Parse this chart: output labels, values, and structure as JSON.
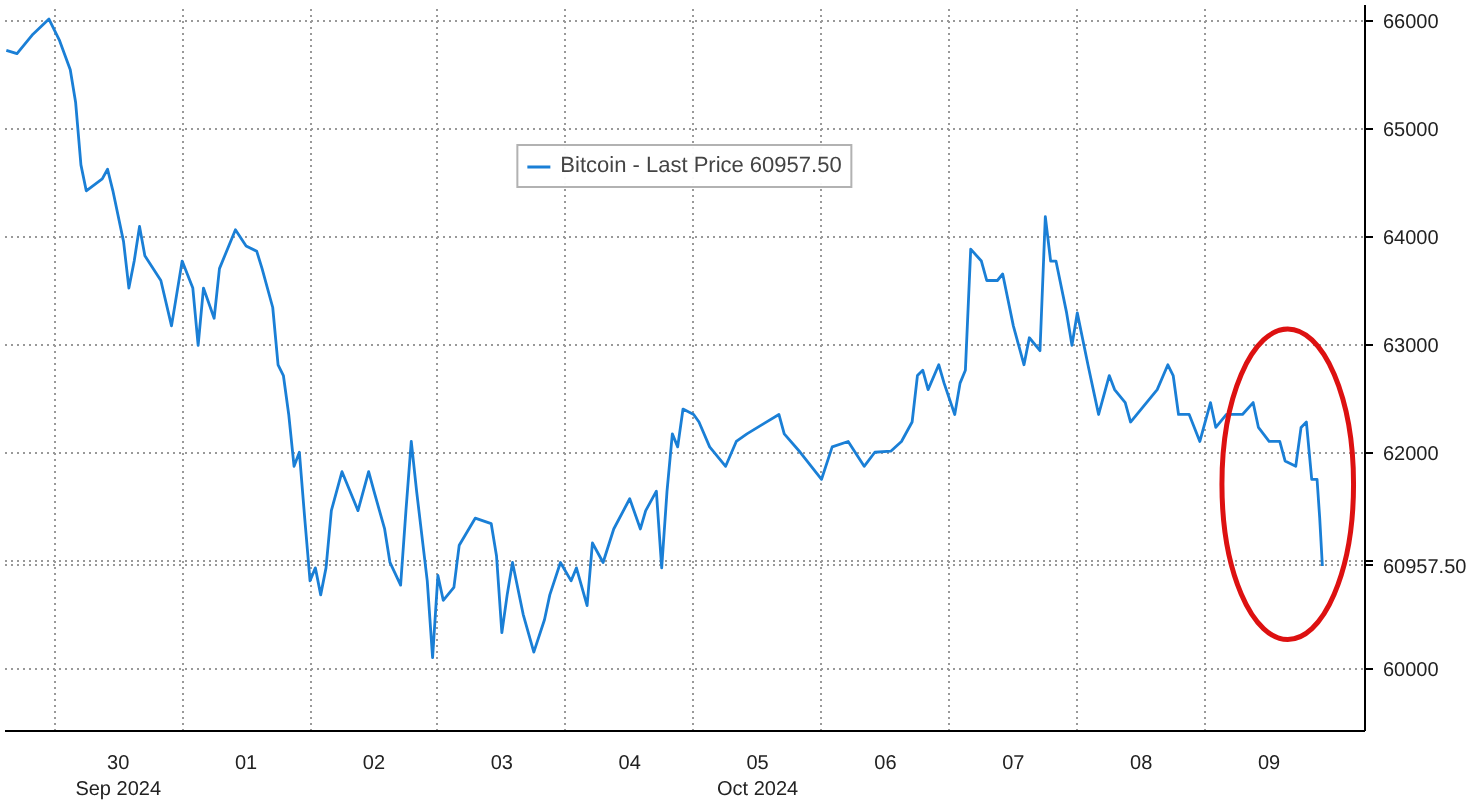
{
  "chart_data": {
    "type": "line",
    "legend": "top",
    "grid": true,
    "marker": "none",
    "line_style": "solid",
    "xlim": [
      "2024-09-29T14:45",
      "2024-10-10T06:00"
    ],
    "ylim": [
      59430,
      66150
    ],
    "yticks": [
      60000,
      {
        "value": 60957.5,
        "label": "60957.50"
      },
      {
        "value": 61000,
        "label": null
      },
      62000,
      63000,
      64000,
      65000,
      66000
    ],
    "xticks": [
      {
        "value": "2024-09-30T00:00",
        "label": null
      },
      {
        "value": "2024-09-30T12:00",
        "label": "30\nSep 2024"
      },
      {
        "value": "2024-10-01T00:00",
        "label": null
      },
      {
        "value": "2024-10-01T12:00",
        "label": "01"
      },
      {
        "value": "2024-10-02T00:00",
        "label": null
      },
      {
        "value": "2024-10-02T12:00",
        "label": "02"
      },
      {
        "value": "2024-10-03T00:00",
        "label": null
      },
      {
        "value": "2024-10-03T12:00",
        "label": "03"
      },
      {
        "value": "2024-10-04T00:00",
        "label": null
      },
      {
        "value": "2024-10-04T12:00",
        "label": "04"
      },
      {
        "value": "2024-10-05T00:00",
        "label": null
      },
      {
        "value": "2024-10-05T12:00",
        "label": "05\nOct 2024"
      },
      {
        "value": "2024-10-06T00:00",
        "label": null
      },
      {
        "value": "2024-10-06T12:00",
        "label": "06"
      },
      {
        "value": "2024-10-07T00:00",
        "label": null
      },
      {
        "value": "2024-10-07T12:00",
        "label": "07"
      },
      {
        "value": "2024-10-08T00:00",
        "label": null
      },
      {
        "value": "2024-10-08T12:00",
        "label": "08"
      },
      {
        "value": "2024-10-09T00:00",
        "label": null
      },
      {
        "value": "2024-10-09T12:00",
        "label": "09"
      }
    ],
    "series": [
      {
        "name": "Bitcoin - Last Price 60957.50",
        "color": "#1a7fd6",
        "x": [
          "2024-09-29T15:00",
          "2024-09-29T17:00",
          "2024-09-29T20:00",
          "2024-09-29T23:00",
          "2024-09-30T01:00",
          "2024-09-30T03:00",
          "2024-09-30T04:00",
          "2024-09-30T05:00",
          "2024-09-30T06:00",
          "2024-09-30T09:00",
          "2024-09-30T10:00",
          "2024-09-30T11:00",
          "2024-09-30T13:00",
          "2024-09-30T14:00",
          "2024-09-30T15:00",
          "2024-09-30T16:00",
          "2024-09-30T17:00",
          "2024-09-30T20:00",
          "2024-09-30T22:00",
          "2024-10-01T00:00",
          "2024-10-01T02:00",
          "2024-10-01T03:00",
          "2024-10-01T04:00",
          "2024-10-01T06:00",
          "2024-10-01T07:00",
          "2024-10-01T10:00",
          "2024-10-01T12:00",
          "2024-10-01T14:00",
          "2024-10-01T15:00",
          "2024-10-01T17:00",
          "2024-10-01T18:00",
          "2024-10-01T19:00",
          "2024-10-01T20:00",
          "2024-10-01T21:00",
          "2024-10-01T22:00",
          "2024-10-01T23:00",
          "2024-10-02T00:00",
          "2024-10-02T01:00",
          "2024-10-02T02:00",
          "2024-10-02T03:00",
          "2024-10-02T04:00",
          "2024-10-02T06:00",
          "2024-10-02T09:00",
          "2024-10-02T11:00",
          "2024-10-02T12:00",
          "2024-10-02T14:00",
          "2024-10-02T15:00",
          "2024-10-02T17:00",
          "2024-10-02T18:00",
          "2024-10-02T19:00",
          "2024-10-02T20:00",
          "2024-10-02T22:00",
          "2024-10-02T23:00",
          "2024-10-03T00:00",
          "2024-10-03T01:00",
          "2024-10-03T03:00",
          "2024-10-03T04:00",
          "2024-10-03T07:00",
          "2024-10-03T10:00",
          "2024-10-03T11:00",
          "2024-10-03T12:00",
          "2024-10-03T13:00",
          "2024-10-03T14:00",
          "2024-10-03T16:00",
          "2024-10-03T18:00",
          "2024-10-03T20:00",
          "2024-10-03T21:00",
          "2024-10-03T23:00",
          "2024-10-04T01:00",
          "2024-10-04T02:00",
          "2024-10-04T04:00",
          "2024-10-04T05:00",
          "2024-10-04T07:00",
          "2024-10-04T09:00",
          "2024-10-04T12:00",
          "2024-10-04T14:00",
          "2024-10-04T15:00",
          "2024-10-04T17:00",
          "2024-10-04T18:00",
          "2024-10-04T19:00",
          "2024-10-04T20:00",
          "2024-10-04T21:00",
          "2024-10-04T22:00",
          "2024-10-05T00:00",
          "2024-10-05T01:00",
          "2024-10-05T03:00",
          "2024-10-05T06:00",
          "2024-10-05T08:00",
          "2024-10-05T10:00",
          "2024-10-05T13:00",
          "2024-10-05T16:00",
          "2024-10-05T17:00",
          "2024-10-05T20:00",
          "2024-10-06T00:00",
          "2024-10-06T02:00",
          "2024-10-06T05:00",
          "2024-10-06T08:00",
          "2024-10-06T10:00",
          "2024-10-06T13:00",
          "2024-10-06T15:00",
          "2024-10-06T17:00",
          "2024-10-06T18:00",
          "2024-10-06T19:00",
          "2024-10-06T20:00",
          "2024-10-06T22:00",
          "2024-10-06T23:00",
          "2024-10-07T01:00",
          "2024-10-07T02:00",
          "2024-10-07T03:00",
          "2024-10-07T04:00",
          "2024-10-07T06:00",
          "2024-10-07T07:00",
          "2024-10-07T09:00",
          "2024-10-07T10:00",
          "2024-10-07T12:00",
          "2024-10-07T14:00",
          "2024-10-07T15:00",
          "2024-10-07T17:00",
          "2024-10-07T18:00",
          "2024-10-07T19:00",
          "2024-10-07T20:00",
          "2024-10-07T22:00",
          "2024-10-07T23:00",
          "2024-10-08T00:00",
          "2024-10-08T02:00",
          "2024-10-08T03:00",
          "2024-10-08T04:00",
          "2024-10-08T06:00",
          "2024-10-08T07:00",
          "2024-10-08T09:00",
          "2024-10-08T10:00",
          "2024-10-08T12:00",
          "2024-10-08T15:00",
          "2024-10-08T17:00",
          "2024-10-08T18:00",
          "2024-10-08T19:00",
          "2024-10-08T21:00",
          "2024-10-08T23:00",
          "2024-10-09T01:00",
          "2024-10-09T02:00",
          "2024-10-09T04:00",
          "2024-10-09T07:00",
          "2024-10-09T09:00",
          "2024-10-09T10:00",
          "2024-10-09T12:00",
          "2024-10-09T14:00",
          "2024-10-09T15:00",
          "2024-10-09T17:00",
          "2024-10-09T18:00",
          "2024-10-09T19:00",
          "2024-10-09T20:00",
          "2024-10-09T21:00",
          "2024-10-09T21:30",
          "2024-10-09T22:00"
        ],
        "values": [
          65730,
          65700,
          65880,
          66020,
          65820,
          65550,
          65250,
          64670,
          64430,
          64540,
          64630,
          64430,
          63960,
          63530,
          63780,
          64100,
          63830,
          63600,
          63180,
          63780,
          63530,
          63000,
          63530,
          63250,
          63710,
          64070,
          63920,
          63870,
          63710,
          63350,
          62820,
          62720,
          62360,
          61880,
          62010,
          61400,
          60820,
          60940,
          60690,
          60940,
          61470,
          61830,
          61470,
          61830,
          61650,
          61300,
          60990,
          60780,
          61470,
          62110,
          61650,
          60820,
          60110,
          60870,
          60640,
          60760,
          61150,
          61400,
          61350,
          61050,
          60340,
          60690,
          60990,
          60510,
          60160,
          60460,
          60690,
          60990,
          60820,
          60940,
          60590,
          61170,
          60990,
          61300,
          61580,
          61300,
          61470,
          61650,
          60940,
          61650,
          62180,
          62060,
          62410,
          62360,
          62290,
          62060,
          61880,
          62110,
          62180,
          62270,
          62360,
          62180,
          62010,
          61760,
          62060,
          62110,
          61880,
          62010,
          62020,
          62110,
          62290,
          62720,
          62770,
          62590,
          62820,
          62650,
          62360,
          62650,
          62770,
          63890,
          63780,
          63600,
          63600,
          63660,
          63180,
          62820,
          63070,
          62950,
          64190,
          63780,
          63780,
          63300,
          63000,
          63300,
          62820,
          62590,
          62360,
          62720,
          62590,
          62470,
          62290,
          62410,
          62590,
          62820,
          62720,
          62360,
          62360,
          62110,
          62470,
          62240,
          62360,
          62360,
          62470,
          62240,
          62110,
          62110,
          61930,
          61880,
          62240,
          62290,
          61760,
          61760,
          61400,
          60957.5
        ]
      }
    ]
  }
}
